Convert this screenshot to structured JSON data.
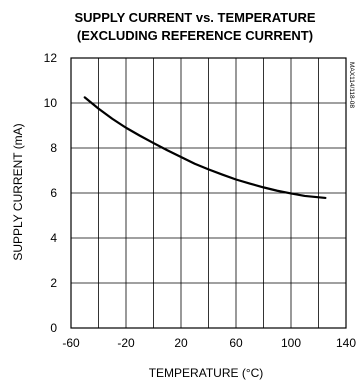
{
  "chart_data": {
    "type": "line",
    "title": "SUPPLY CURRENT vs. TEMPERATURE",
    "subtitle": "(EXCLUDING REFERENCE CURRENT)",
    "xlabel": "TEMPERATURE (°C)",
    "ylabel": "SUPPLY CURRENT (mA)",
    "xlim": [
      -60,
      140
    ],
    "ylim": [
      0,
      12
    ],
    "xticks": [
      -60,
      -20,
      20,
      60,
      100,
      140
    ],
    "yticks": [
      0,
      2,
      4,
      6,
      8,
      10,
      12
    ],
    "x_gridlines": 10,
    "y_gridlines": 6,
    "grid": true,
    "code": "MAX114/118-08",
    "series": [
      {
        "x": [
          -50,
          -40,
          -30,
          -20,
          -10,
          0,
          10,
          20,
          30,
          40,
          50,
          60,
          70,
          80,
          90,
          100,
          110,
          125
        ],
        "values": [
          10.25,
          9.75,
          9.3,
          8.9,
          8.55,
          8.22,
          7.9,
          7.6,
          7.3,
          7.05,
          6.82,
          6.6,
          6.42,
          6.25,
          6.1,
          5.98,
          5.87,
          5.78
        ]
      }
    ]
  }
}
